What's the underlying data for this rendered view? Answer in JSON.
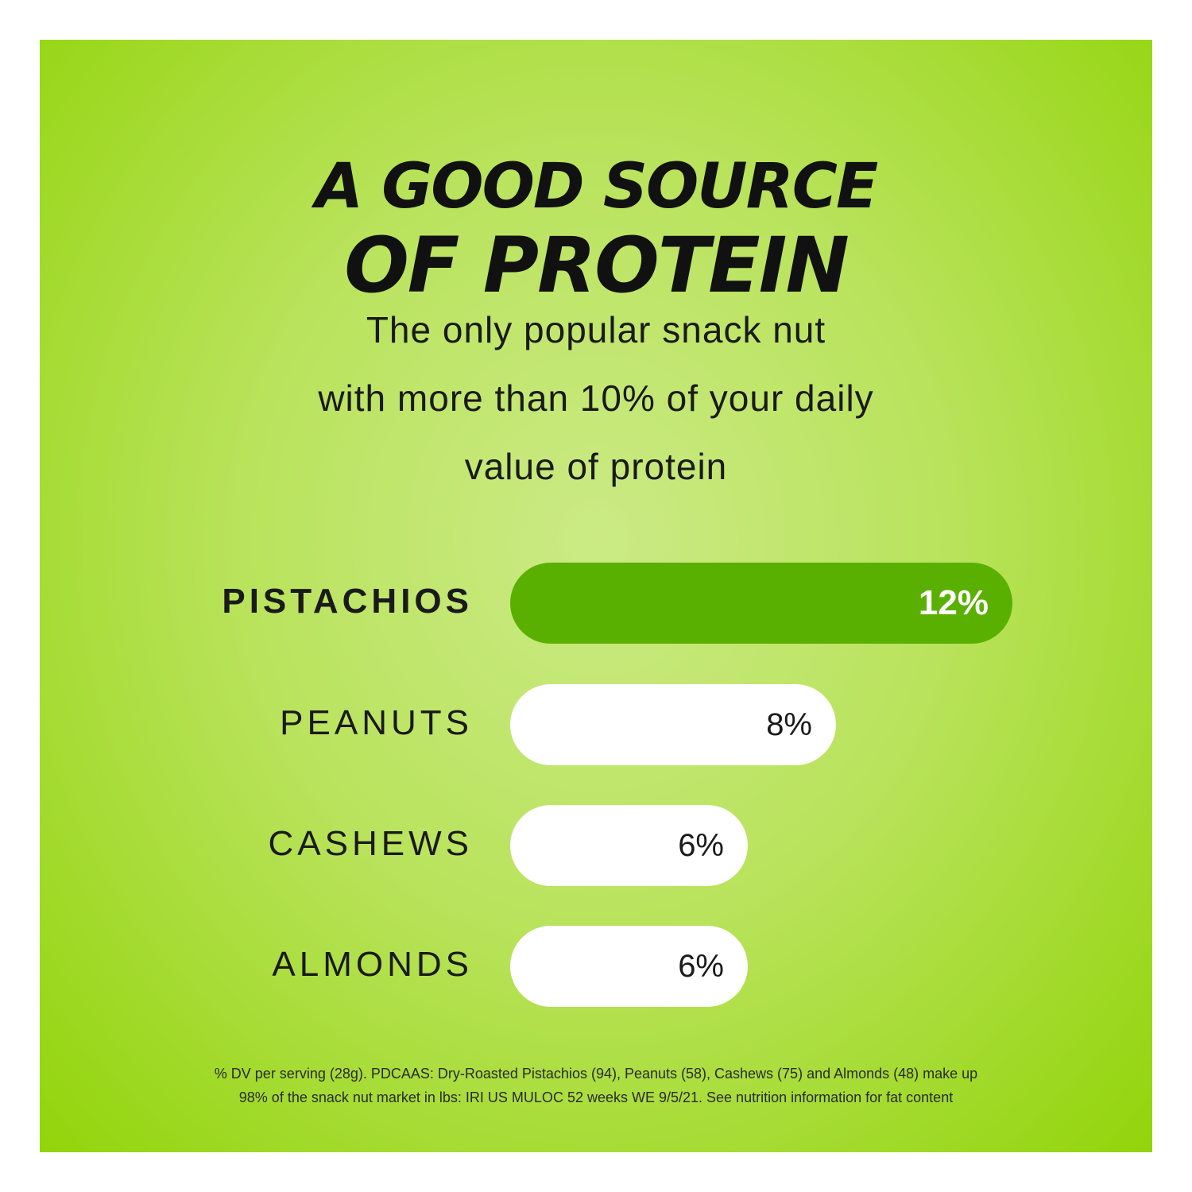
{
  "title_line1": "A GOOD SOURCE",
  "title_line2": "OF PROTEIN",
  "subtitle": [
    "The only popular snack nut",
    "with more than 10% of your daily",
    "value of protein"
  ],
  "chart_data": {
    "type": "bar",
    "orientation": "horizontal",
    "categories": [
      "PISTACHIOS",
      "PEANUTS",
      "CASHEWS",
      "ALMONDS"
    ],
    "values": [
      12,
      8,
      6,
      6
    ],
    "data_labels": [
      "12%",
      "8%",
      "6%",
      "6%"
    ],
    "unit": "% DV",
    "highlight": "PISTACHIOS",
    "colors": {
      "highlight": "#5ab000",
      "other": "#ffffff",
      "background": "#a6dc2e"
    }
  },
  "footnote": [
    "% DV per serving (28g). PDCAAS: Dry-Roasted Pistachios (94), Peanuts (58), Cashews (75) and Almonds (48) make up",
    "98% of the snack nut market in lbs: IRI US MULOC 52 weeks WE 9/5/21. See nutrition information for fat content"
  ]
}
